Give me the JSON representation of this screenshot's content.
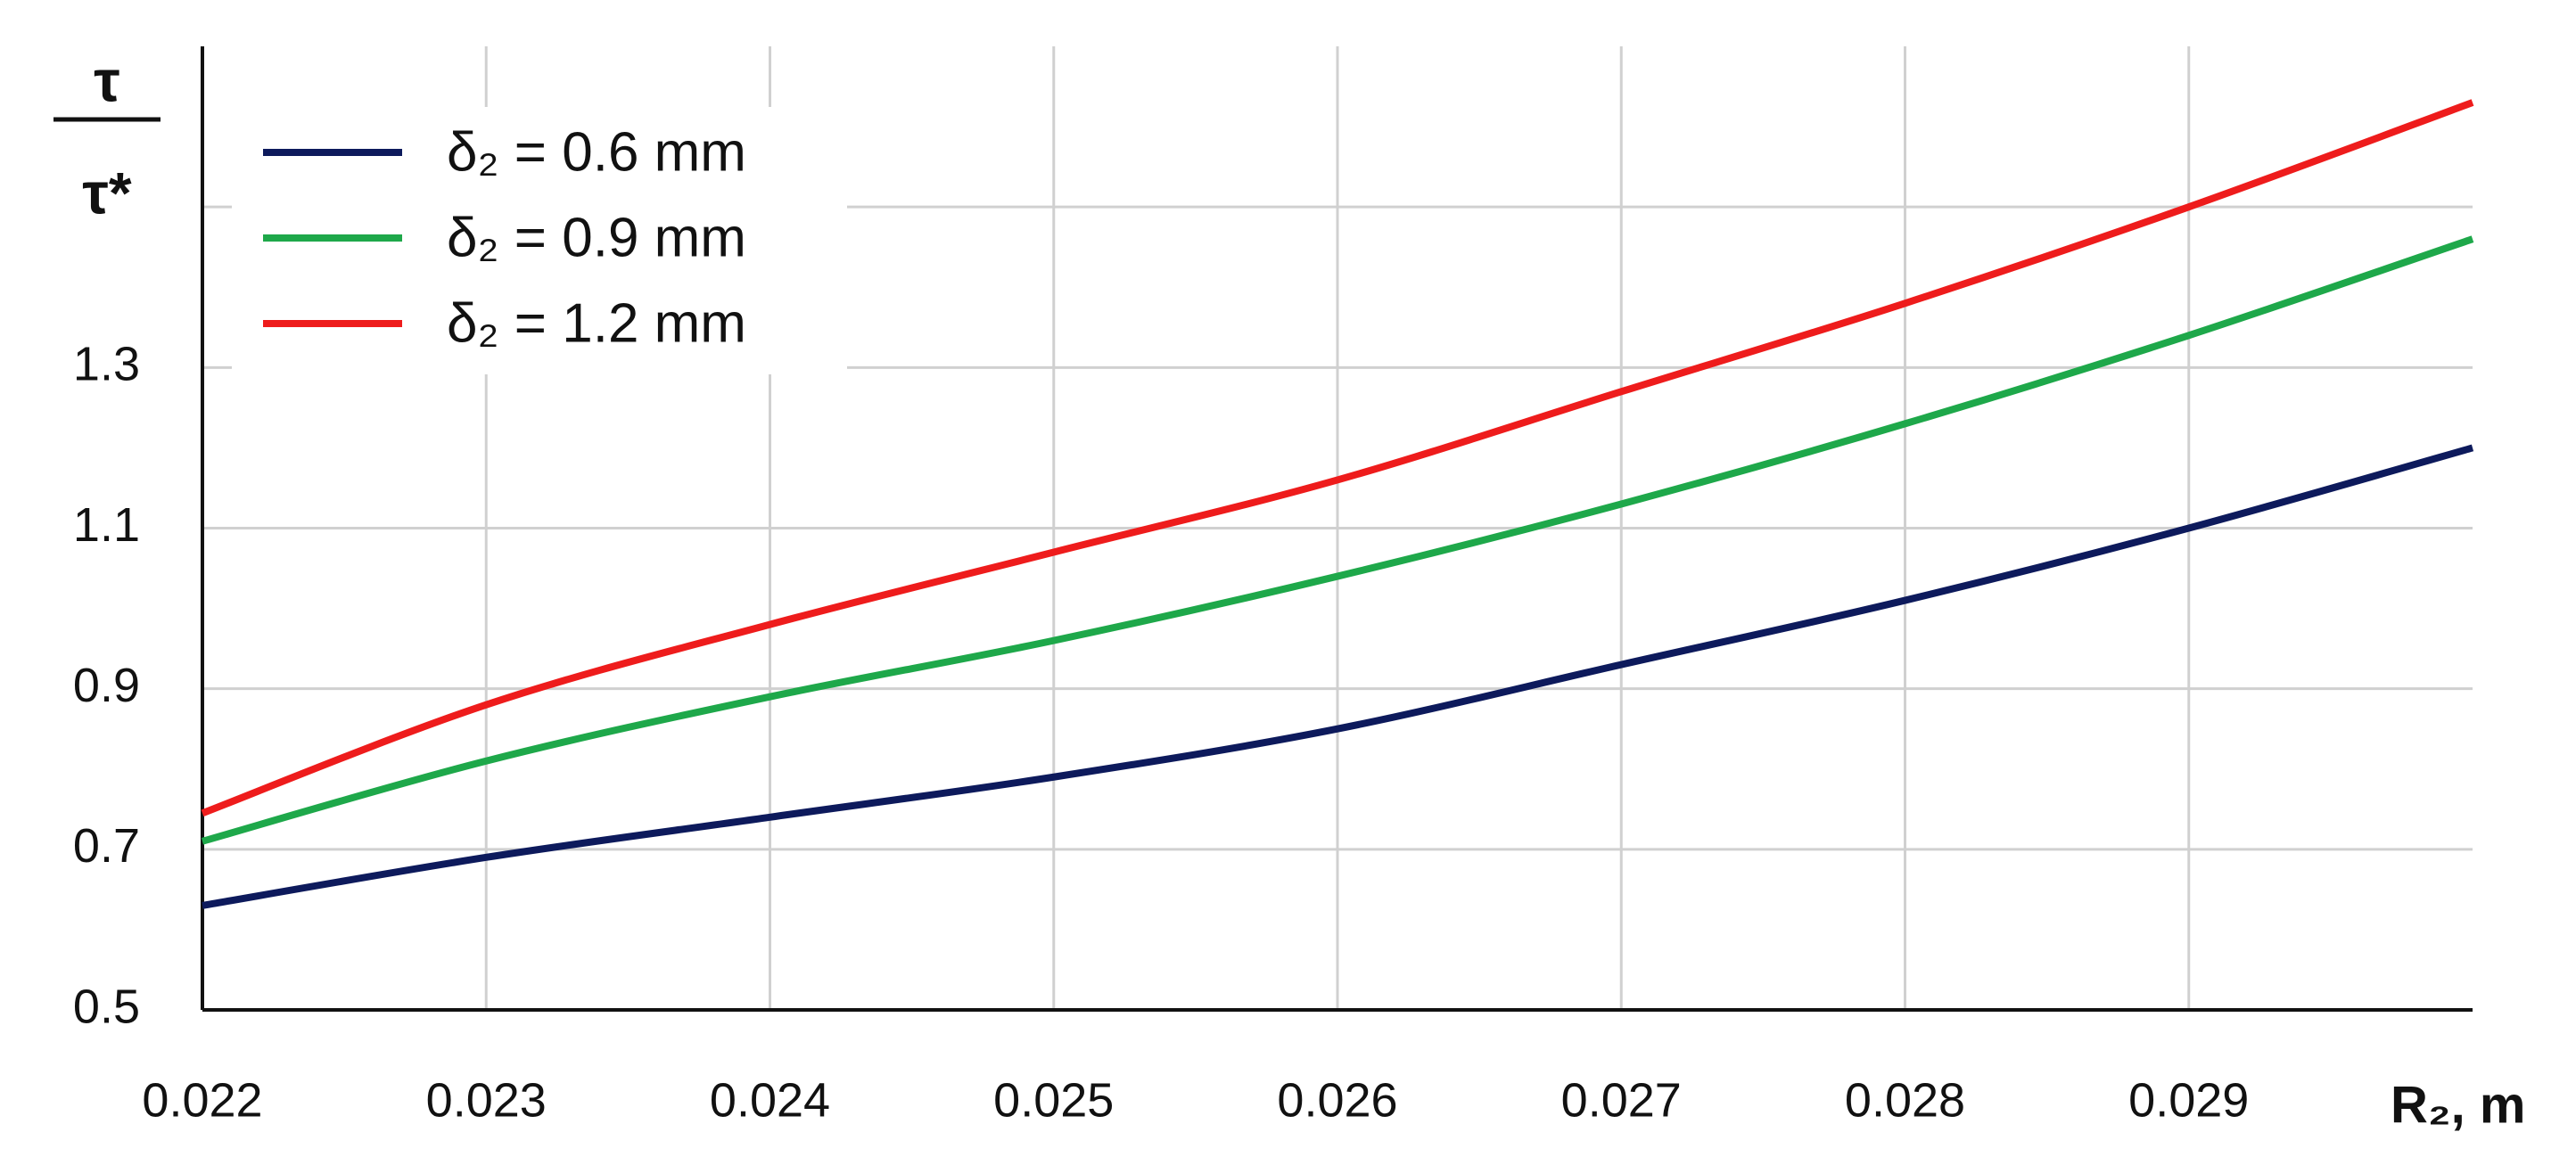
{
  "chart_data": {
    "type": "line",
    "ylabel": [
      "τ",
      "τ*"
    ],
    "xlabel": "R₂, m",
    "x": [
      0.022,
      0.023,
      0.024,
      0.025,
      0.026,
      0.027,
      0.028,
      0.029,
      0.03
    ],
    "series": [
      {
        "name": "δ₂ = 0.6 mm",
        "color": "#0d1a5c",
        "values": [
          0.63,
          0.69,
          0.74,
          0.79,
          0.85,
          0.93,
          1.01,
          1.1,
          1.2
        ]
      },
      {
        "name": "δ₂ = 0.9 mm",
        "color": "#1ea84a",
        "values": [
          0.71,
          0.81,
          0.89,
          0.96,
          1.04,
          1.13,
          1.23,
          1.34,
          1.46
        ]
      },
      {
        "name": "δ₂ = 1.2 mm",
        "color": "#ee1c1c",
        "values": [
          0.745,
          0.88,
          0.98,
          1.07,
          1.16,
          1.27,
          1.38,
          1.5,
          1.63
        ]
      }
    ],
    "xlim": [
      0.022,
      0.03
    ],
    "xticks": [
      0.022,
      0.023,
      0.024,
      0.025,
      0.026,
      0.027,
      0.028,
      0.029
    ],
    "ylim": [
      0.5,
      1.7
    ],
    "yticks": [
      0.5,
      0.7,
      0.9,
      1.1,
      1.3,
      {
        "value": 1.5,
        "label": null
      }
    ],
    "grid": true,
    "legend": "upper left"
  }
}
